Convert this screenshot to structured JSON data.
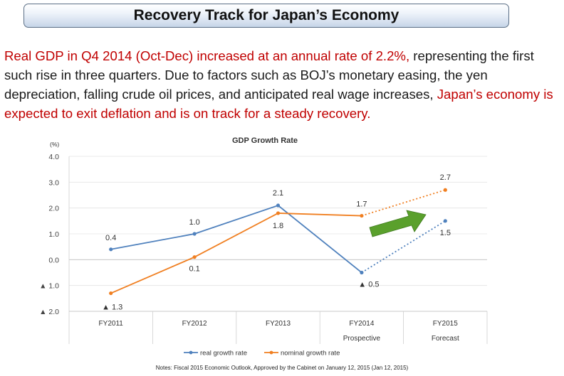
{
  "title": "Recovery Track for Japan’s Economy",
  "intro": {
    "part1": "Real GDP in Q4 2014 (Oct-Dec) increased at an annual rate of 2.2%,",
    "part2": " representing the first such rise in three quarters. Due to factors such as BOJ’s monetary easing, the yen depreciation, falling crude oil prices, and anticipated real wage increases, ",
    "part3": "Japan’s economy is expected to exit deflation and is on track for a steady recovery."
  },
  "colors": {
    "real": "#4f81bd",
    "nominal": "#f07f21",
    "highlight": "#c00000",
    "arrow": "#5aa02c"
  },
  "chart_data": {
    "type": "line",
    "title": "GDP Growth Rate",
    "ylabel": "(%)",
    "ylim": [
      -2.0,
      4.0
    ],
    "yticks": [
      4.0,
      3.0,
      2.0,
      1.0,
      0.0,
      -1.0,
      -2.0
    ],
    "ytick_labels": [
      "4.0",
      "3.0",
      "2.0",
      "1.0",
      "0.0",
      "▲ 1.0",
      "▲ 2.0"
    ],
    "categories": [
      "FY2011",
      "FY2012",
      "FY2013",
      "FY2014",
      "FY2015"
    ],
    "category_sublabels": [
      "",
      "",
      "",
      "Prospective",
      "Forecast"
    ],
    "series": [
      {
        "name": "real growth rate",
        "values": [
          0.4,
          1.0,
          2.1,
          -0.5,
          1.5
        ],
        "labels": [
          "0.4",
          "1.0",
          "2.1",
          "▲ 0.5",
          "1.5"
        ],
        "projected_from_index": 3
      },
      {
        "name": "nominal growth rate",
        "values": [
          -1.3,
          0.1,
          1.8,
          1.7,
          2.7
        ],
        "labels": [
          "▲ 1.3",
          "0.1",
          "1.8",
          "1.7",
          "2.7"
        ],
        "projected_from_index": 3
      }
    ],
    "legend_position": "bottom"
  },
  "note": "Notes: Fiscal 2015 Economic Outlook, Approved by the Cabinet on January 12, 2015 (Jan 12, 2015)"
}
